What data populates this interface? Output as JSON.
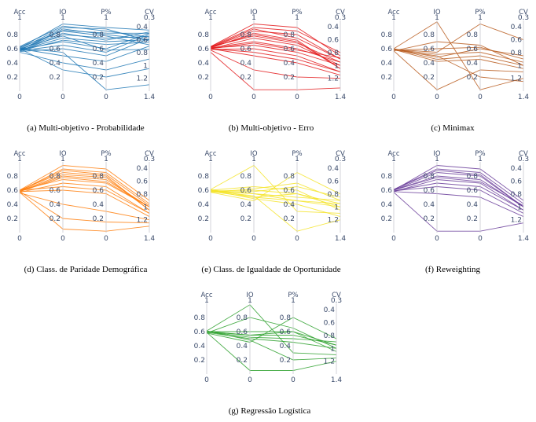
{
  "axes": [
    {
      "title": "Acc",
      "top_label": "1",
      "ticks": [
        "0.8",
        "0.6",
        "0.4",
        "0.2",
        "0"
      ]
    },
    {
      "title": "IO",
      "top_label": "1",
      "ticks": [
        "0.8",
        "0.6",
        "0.4",
        "0.2",
        "0"
      ]
    },
    {
      "title": "P%",
      "top_label": "1",
      "ticks": [
        "0.8",
        "0.6",
        "0.4",
        "0.2",
        "0"
      ]
    },
    {
      "title": "CV",
      "top_label": "0.3",
      "ticks": [
        "0.4",
        "0.6",
        "0.8",
        "1",
        "1.2",
        "1.4"
      ]
    }
  ],
  "chart_data": [
    {
      "type": "parallel_coordinates",
      "caption": "(a) Multi-objetivo - Probabilidade",
      "color": "#1f77b4",
      "dimensions": [
        "Acc",
        "IO",
        "P%",
        "CV"
      ],
      "lines": [
        [
          0.58,
          0.86,
          0.82,
          0.5
        ],
        [
          0.6,
          0.9,
          0.88,
          0.62
        ],
        [
          0.57,
          0.8,
          0.75,
          0.55
        ],
        [
          0.61,
          0.95,
          0.9,
          0.45
        ],
        [
          0.59,
          0.7,
          0.6,
          0.5
        ],
        [
          0.56,
          0.6,
          0.5,
          0.58
        ],
        [
          0.62,
          0.85,
          0.78,
          0.68
        ],
        [
          0.58,
          0.75,
          0.7,
          0.6
        ],
        [
          0.6,
          0.5,
          0.42,
          0.7
        ],
        [
          0.55,
          0.4,
          0.3,
          0.9
        ],
        [
          0.63,
          0.92,
          0.85,
          0.56
        ],
        [
          0.57,
          0.65,
          0.55,
          0.52
        ],
        [
          0.59,
          0.82,
          0.72,
          0.48
        ],
        [
          0.6,
          0.3,
          0.2,
          1.05
        ],
        [
          0.58,
          0.88,
          0.8,
          0.6
        ],
        [
          0.61,
          0.55,
          0.02,
          1.3
        ],
        [
          0.57,
          0.72,
          0.66,
          0.64
        ],
        [
          0.6,
          0.78,
          0.58,
          0.75
        ]
      ]
    },
    {
      "type": "parallel_coordinates",
      "caption": "(b) Multi-objetivo - Erro",
      "color": "#e31a1c",
      "dimensions": [
        "Acc",
        "IO",
        "P%",
        "CV"
      ],
      "lines": [
        [
          0.62,
          0.85,
          0.8,
          0.9
        ],
        [
          0.6,
          0.75,
          0.65,
          1.0
        ],
        [
          0.63,
          0.95,
          0.9,
          0.85
        ],
        [
          0.59,
          0.6,
          0.5,
          1.1
        ],
        [
          0.61,
          0.7,
          0.6,
          0.95
        ],
        [
          0.62,
          0.8,
          0.7,
          1.05
        ],
        [
          0.6,
          0.5,
          0.4,
          1.15
        ],
        [
          0.63,
          0.9,
          0.85,
          0.8
        ],
        [
          0.58,
          0.3,
          0.2,
          1.2
        ],
        [
          0.55,
          0.02,
          0.02,
          1.35
        ],
        [
          0.61,
          0.65,
          0.55,
          1.0
        ],
        [
          0.62,
          0.88,
          0.75,
          0.9
        ],
        [
          0.6,
          0.55,
          0.45,
          1.1
        ],
        [
          0.63,
          0.78,
          0.68,
          0.95
        ],
        [
          0.61,
          0.82,
          0.72,
          1.05
        ],
        [
          0.6,
          0.68,
          0.58,
          0.88
        ]
      ]
    },
    {
      "type": "parallel_coordinates",
      "caption": "(c) Minimax",
      "color": "#b85c1e",
      "dimensions": [
        "Acc",
        "IO",
        "P%",
        "CV"
      ],
      "lines": [
        [
          0.59,
          0.52,
          0.55,
          0.95
        ],
        [
          0.58,
          0.6,
          0.62,
          0.9
        ],
        [
          0.6,
          0.45,
          0.5,
          1.0
        ],
        [
          0.57,
          0.02,
          0.3,
          1.1
        ],
        [
          0.6,
          0.98,
          0.02,
          1.2
        ],
        [
          0.59,
          0.55,
          0.95,
          0.6
        ],
        [
          0.58,
          0.5,
          0.2,
          1.25
        ],
        [
          0.6,
          0.48,
          0.6,
          0.85
        ],
        [
          0.57,
          0.7,
          0.65,
          1.0
        ],
        [
          0.59,
          0.42,
          0.45,
          1.05
        ]
      ]
    },
    {
      "type": "parallel_coordinates",
      "caption": "(d) Class. de Paridade Demográfica",
      "color": "#ff7f0e",
      "dimensions": [
        "Acc",
        "IO",
        "P%",
        "CV"
      ],
      "lines": [
        [
          0.58,
          0.8,
          0.75,
          1.0
        ],
        [
          0.6,
          0.85,
          0.8,
          1.05
        ],
        [
          0.57,
          0.7,
          0.65,
          1.1
        ],
        [
          0.59,
          0.9,
          0.85,
          0.95
        ],
        [
          0.6,
          0.75,
          0.7,
          1.0
        ],
        [
          0.58,
          0.6,
          0.55,
          1.15
        ],
        [
          0.56,
          0.4,
          0.3,
          1.2
        ],
        [
          0.6,
          0.95,
          0.9,
          0.9
        ],
        [
          0.58,
          0.2,
          0.15,
          1.25
        ],
        [
          0.57,
          0.05,
          0.02,
          1.3
        ],
        [
          0.59,
          0.82,
          0.78,
          1.05
        ],
        [
          0.6,
          0.65,
          0.6,
          1.1
        ],
        [
          0.58,
          0.78,
          0.72,
          1.0
        ],
        [
          0.59,
          0.88,
          0.82,
          0.98
        ]
      ]
    },
    {
      "type": "parallel_coordinates",
      "caption": "(e) Class. de Igualdade de Oportunidade",
      "color": "#f5e42a",
      "dimensions": [
        "Acc",
        "IO",
        "P%",
        "CV"
      ],
      "lines": [
        [
          0.6,
          0.55,
          0.5,
          0.9
        ],
        [
          0.58,
          0.5,
          0.45,
          1.0
        ],
        [
          0.59,
          0.6,
          0.55,
          0.95
        ],
        [
          0.61,
          0.95,
          0.3,
          1.1
        ],
        [
          0.57,
          0.45,
          0.85,
          0.8
        ],
        [
          0.6,
          0.65,
          0.6,
          1.05
        ],
        [
          0.59,
          0.52,
          0.02,
          1.2
        ],
        [
          0.58,
          0.58,
          0.65,
          0.85
        ],
        [
          0.6,
          0.48,
          0.4,
          1.15
        ],
        [
          0.57,
          0.62,
          0.7,
          0.9
        ],
        [
          0.61,
          0.5,
          0.55,
          1.0
        ],
        [
          0.59,
          0.55,
          0.45,
          0.95
        ]
      ]
    },
    {
      "type": "parallel_coordinates",
      "caption": "(f) Reweighting",
      "color": "#6a3d9a",
      "dimensions": [
        "Acc",
        "IO",
        "P%",
        "CV"
      ],
      "lines": [
        [
          0.6,
          0.85,
          0.8,
          1.0
        ],
        [
          0.58,
          0.75,
          0.7,
          1.05
        ],
        [
          0.61,
          0.9,
          0.85,
          0.95
        ],
        [
          0.59,
          0.65,
          0.6,
          1.1
        ],
        [
          0.6,
          0.8,
          0.75,
          1.0
        ],
        [
          0.57,
          0.02,
          0.02,
          1.25
        ],
        [
          0.6,
          0.95,
          0.9,
          0.9
        ],
        [
          0.58,
          0.55,
          0.5,
          1.15
        ],
        [
          0.61,
          0.88,
          0.82,
          1.0
        ],
        [
          0.59,
          0.7,
          0.65,
          1.05
        ],
        [
          0.6,
          0.78,
          0.72,
          0.98
        ]
      ]
    },
    {
      "type": "parallel_coordinates",
      "caption": "(g) Regressão Logística",
      "color": "#2ca02c",
      "dimensions": [
        "Acc",
        "IO",
        "P%",
        "CV"
      ],
      "lines": [
        [
          0.6,
          0.55,
          0.55,
          0.95
        ],
        [
          0.59,
          0.5,
          0.45,
          1.0
        ],
        [
          0.61,
          0.98,
          0.3,
          1.1
        ],
        [
          0.58,
          0.45,
          0.8,
          0.85
        ],
        [
          0.6,
          0.6,
          0.6,
          1.05
        ],
        [
          0.59,
          0.05,
          0.05,
          1.2
        ],
        [
          0.6,
          0.52,
          0.5,
          0.9
        ],
        [
          0.58,
          0.8,
          0.65,
          1.0
        ],
        [
          0.61,
          0.48,
          0.2,
          1.15
        ],
        [
          0.6,
          0.55,
          0.6,
          0.95
        ]
      ]
    }
  ]
}
